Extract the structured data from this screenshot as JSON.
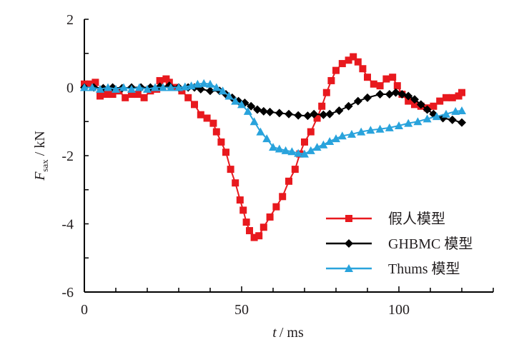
{
  "chart_data": {
    "type": "line",
    "xlabel": "t",
    "xlabel_unit": "/ ms",
    "ylabel": "F",
    "ylabel_sub": "sax",
    "ylabel_unit": "/ kN",
    "xlim": [
      0,
      130
    ],
    "ylim": [
      -6,
      2
    ],
    "xticks": [
      "0",
      "50",
      "100"
    ],
    "xtick_values": [
      0,
      50,
      100
    ],
    "yticks": [
      "2",
      "0",
      "-2",
      "-4",
      "-6"
    ],
    "ytick_values": [
      2,
      0,
      -2,
      -4,
      -6
    ],
    "grid": false,
    "legend_position": "bottom-right",
    "series": [
      {
        "name": "假人模型",
        "color": "#e8191e",
        "marker": "square",
        "x": [
          0,
          2,
          3.5,
          5,
          7,
          9,
          11,
          13,
          15,
          17,
          19,
          21,
          23,
          24,
          26,
          27,
          29,
          31,
          33,
          35,
          37,
          39,
          41,
          42,
          43.5,
          45,
          46.5,
          48,
          49.5,
          50.5,
          51.5,
          52.5,
          54,
          55.5,
          57,
          59,
          61,
          63,
          65,
          67,
          68.5,
          70,
          72,
          74,
          75.5,
          77,
          78.5,
          80,
          82,
          84,
          85.5,
          87,
          88.5,
          90,
          92,
          94,
          96,
          98,
          99.5,
          101,
          103,
          105,
          107,
          109,
          111,
          113,
          115,
          117,
          119,
          120
        ],
        "y": [
          0.1,
          0.1,
          0.15,
          -0.25,
          -0.2,
          -0.2,
          -0.1,
          -0.3,
          -0.2,
          -0.2,
          -0.3,
          -0.1,
          -0.05,
          0.2,
          0.25,
          0.15,
          0,
          -0.1,
          -0.3,
          -0.5,
          -0.8,
          -0.9,
          -1.05,
          -1.3,
          -1.6,
          -1.9,
          -2.4,
          -2.8,
          -3.3,
          -3.6,
          -3.95,
          -4.2,
          -4.4,
          -4.35,
          -4.1,
          -3.8,
          -3.5,
          -3.2,
          -2.75,
          -2.4,
          -1.95,
          -1.6,
          -1.3,
          -0.9,
          -0.55,
          -0.15,
          0.2,
          0.5,
          0.7,
          0.8,
          0.9,
          0.75,
          0.55,
          0.3,
          0.1,
          0.05,
          0.25,
          0.3,
          0.05,
          -0.2,
          -0.4,
          -0.5,
          -0.55,
          -0.6,
          -0.55,
          -0.4,
          -0.3,
          -0.3,
          -0.25,
          -0.15
        ]
      },
      {
        "name": "GHBMC 模型",
        "color": "#000000",
        "marker": "diamond",
        "x": [
          0,
          3,
          6,
          9,
          12,
          15,
          18,
          21,
          24,
          27,
          30,
          33,
          35,
          37,
          40,
          43,
          45,
          47,
          49,
          51,
          53,
          55,
          57,
          59,
          62,
          65,
          68,
          71,
          73,
          76,
          78,
          81,
          84,
          87,
          90,
          94,
          97,
          99,
          101,
          103,
          105,
          107,
          109,
          111,
          114,
          117,
          120
        ],
        "y": [
          0,
          0,
          -0.02,
          0,
          -0.02,
          0,
          0,
          0,
          0.02,
          0.05,
          0,
          0,
          0,
          -0.05,
          -0.1,
          -0.1,
          -0.2,
          -0.3,
          -0.4,
          -0.45,
          -0.55,
          -0.65,
          -0.7,
          -0.72,
          -0.75,
          -0.78,
          -0.82,
          -0.83,
          -0.78,
          -0.8,
          -0.78,
          -0.68,
          -0.55,
          -0.4,
          -0.3,
          -0.2,
          -0.2,
          -0.15,
          -0.2,
          -0.25,
          -0.35,
          -0.5,
          -0.65,
          -0.78,
          -0.9,
          -0.95,
          -1.03
        ]
      },
      {
        "name": "Thums 模型",
        "color": "#29a3dc",
        "marker": "triangle",
        "x": [
          0,
          2.5,
          5,
          7.5,
          10,
          12.5,
          15,
          17.5,
          20,
          22.5,
          25,
          27.5,
          30,
          32,
          34,
          36,
          38,
          40,
          42,
          44,
          46,
          48,
          50,
          52,
          54,
          56,
          58,
          60,
          62,
          64,
          66,
          68,
          70,
          72,
          74,
          76,
          78,
          80,
          82,
          85,
          88,
          91,
          94,
          97,
          100,
          103,
          106,
          109,
          112,
          115,
          118,
          120
        ],
        "y": [
          0,
          0,
          -0.05,
          0,
          -0.05,
          0,
          -0.05,
          0,
          -0.05,
          0,
          0,
          0,
          0,
          0.02,
          0.05,
          0.1,
          0.12,
          0.1,
          0,
          -0.1,
          -0.25,
          -0.4,
          -0.5,
          -0.7,
          -1.0,
          -1.3,
          -1.5,
          -1.75,
          -1.8,
          -1.85,
          -1.88,
          -1.93,
          -1.95,
          -1.85,
          -1.75,
          -1.68,
          -1.58,
          -1.5,
          -1.42,
          -1.37,
          -1.3,
          -1.25,
          -1.22,
          -1.18,
          -1.12,
          -1.05,
          -1.0,
          -0.92,
          -0.85,
          -0.78,
          -0.7,
          -0.68
        ]
      }
    ]
  }
}
